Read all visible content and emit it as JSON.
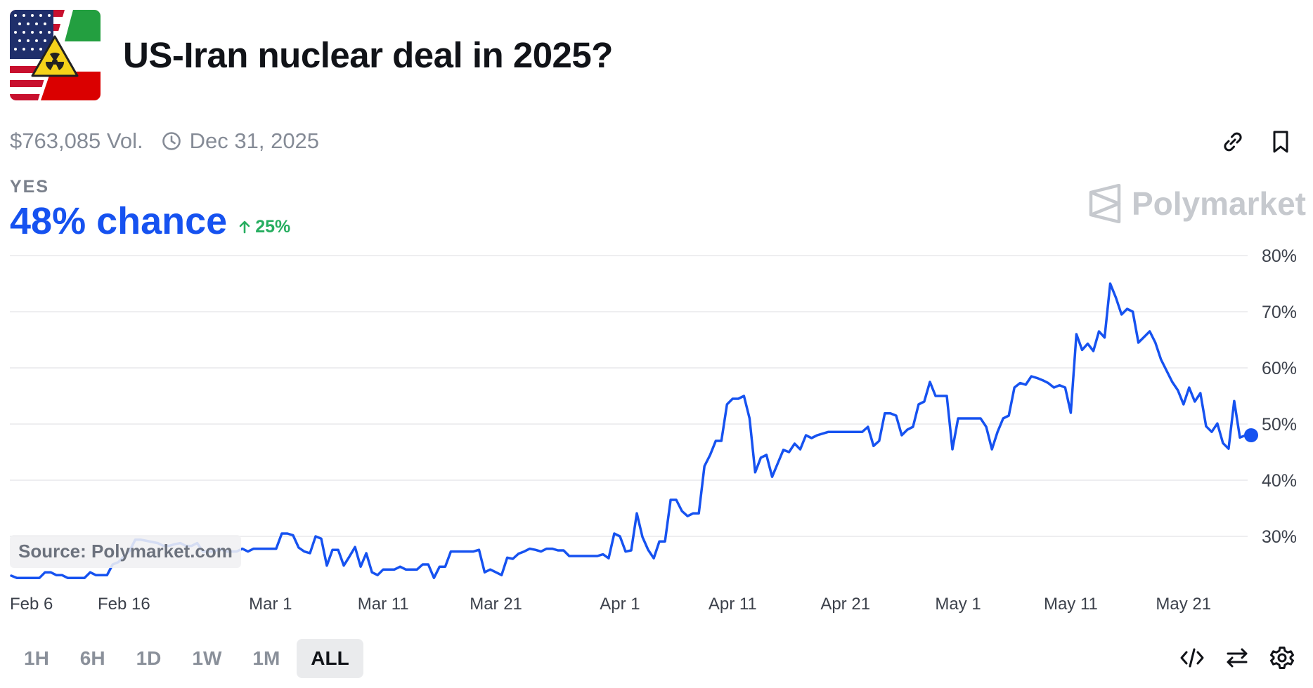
{
  "market": {
    "title": "US-Iran nuclear deal in 2025?",
    "volume": "$763,085 Vol.",
    "end_date": "Dec 31, 2025"
  },
  "outcome": {
    "label": "YES",
    "probability_text": "48% chance",
    "change_text": "25%",
    "change_direction": "up"
  },
  "brand": {
    "watermark": "Polymarket",
    "source": "Source: Polymarket.com"
  },
  "colors": {
    "line": "#1652f0",
    "change_positive": "#27ae60",
    "grid": "#e8e9ec"
  },
  "icons": {
    "top_actions": [
      "link-icon",
      "bookmark-icon"
    ],
    "bottom_actions": [
      "embed-code-icon",
      "swap-icon",
      "settings-icon"
    ]
  },
  "range_buttons": [
    "1H",
    "6H",
    "1D",
    "1W",
    "1M",
    "ALL"
  ],
  "active_range": "ALL",
  "chart_data": {
    "type": "line",
    "title": "",
    "xlabel": "",
    "ylabel": "",
    "x_start": "Feb 6",
    "x_step_days": 0.5,
    "ylim": [
      20,
      80
    ],
    "ytick_values": [
      30,
      40,
      50,
      60,
      70,
      80
    ],
    "ytick_labels": [
      "30%",
      "40%",
      "50%",
      "60%",
      "70%",
      "80%"
    ],
    "xtick_days": [
      0,
      10,
      23,
      33,
      43,
      54,
      64,
      74,
      84,
      94,
      104
    ],
    "xtick_labels": [
      "Feb 6",
      "Feb 16",
      "Mar 1",
      "Mar 11",
      "Mar 21",
      "Apr 1",
      "Apr 11",
      "Apr 21",
      "May 1",
      "May 11",
      "May 21"
    ],
    "grid": true,
    "legend": "none",
    "series": [
      {
        "values": [
          23,
          22.6,
          22.6,
          22.6,
          22.6,
          22.6,
          23.6,
          23.6,
          23.1,
          23.1,
          22.6,
          22.6,
          22.6,
          22.6,
          23.6,
          23.1,
          23.1,
          23.1,
          25,
          25.4,
          26.4,
          27.4,
          29.4,
          29.4,
          29.2,
          29,
          28.8,
          28.3,
          28.3,
          28.6,
          28.8,
          28.3,
          28.3,
          28.8,
          27.3,
          27.3,
          27.3,
          27.8,
          27.3,
          27.3,
          27.3,
          27.8,
          27.3,
          27.8,
          27.8,
          27.8,
          27.8,
          27.8,
          30.5,
          30.5,
          30.2,
          28,
          27.3,
          27,
          30,
          29.6,
          24.8,
          27.6,
          27.6,
          24.8,
          26.4,
          28.1,
          24.6,
          27,
          23.6,
          23.1,
          24.1,
          24.1,
          24.1,
          24.6,
          24.1,
          24.1,
          24.1,
          25,
          25,
          22.6,
          24.6,
          24.6,
          27.3,
          27.3,
          27.3,
          27.3,
          27.3,
          27.6,
          23.6,
          24.1,
          23.6,
          23.1,
          26.2,
          26,
          26.9,
          27.3,
          27.8,
          27.6,
          27.3,
          27.8,
          27.8,
          27.5,
          27.5,
          26.5,
          26.5,
          26.5,
          26.5,
          26.5,
          26.5,
          26.8,
          26.1,
          30.5,
          30,
          27.3,
          27.5,
          34.1,
          29.9,
          27.6,
          26.1,
          29.1,
          29.1,
          36.5,
          36.5,
          34.5,
          33.6,
          34.1,
          34.1,
          42.5,
          44.5,
          47,
          47,
          53.5,
          54.5,
          54.5,
          55,
          51,
          41.4,
          44,
          44.5,
          40.6,
          43,
          45.4,
          45,
          46.5,
          45.5,
          48,
          47.5,
          48,
          48.3,
          48.6,
          48.6,
          48.6,
          48.6,
          48.6,
          48.6,
          48.6,
          49.5,
          46.1,
          47,
          51.9,
          51.9,
          51.5,
          48,
          49,
          49.5,
          53.5,
          54,
          57.5,
          55,
          55,
          55,
          45.5,
          51,
          51,
          51,
          51,
          51,
          49.5,
          45.5,
          48.6,
          51,
          51.5,
          56.5,
          57.3,
          57,
          58.5,
          58.2,
          57.8,
          57.3,
          56.5,
          56.9,
          56.5,
          52,
          66,
          63.2,
          64.3,
          63,
          66.5,
          65.4,
          75,
          72.5,
          69.5,
          70.5,
          70,
          64.5,
          65.5,
          66.5,
          64.5,
          61.5,
          59.5,
          57.5,
          56,
          53.5,
          56.5,
          54,
          55.5,
          49.6,
          48.6,
          50.1,
          46.6,
          45.6,
          54.1,
          47.6,
          48,
          48
        ]
      }
    ]
  }
}
